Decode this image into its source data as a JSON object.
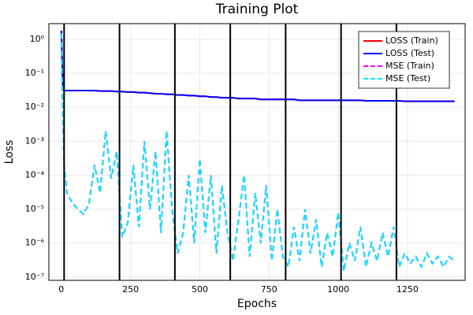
{
  "chart_data": {
    "type": "line",
    "title": "Training Plot",
    "x_label": "Epochs",
    "y_label": "Loss",
    "log_y": true,
    "grid": true,
    "legend": "top-right",
    "xlim": [
      -45,
      1458
    ],
    "xticks": [
      0,
      250,
      500,
      750,
      1000,
      1250
    ],
    "ylim": [
      8e-08,
      2.9
    ],
    "yticks": [
      {
        "value": 1,
        "label": "10⁰"
      },
      {
        "value": 0.1,
        "label": "10⁻¹"
      },
      {
        "value": 0.01,
        "label": "10⁻²"
      },
      {
        "value": 0.001,
        "label": "10⁻³"
      },
      {
        "value": 0.0001,
        "label": "10⁻⁴"
      },
      {
        "value": 1e-05,
        "label": "10⁻⁵"
      },
      {
        "value": 1e-06,
        "label": "10⁻⁶"
      },
      {
        "value": 1e-07,
        "label": "10⁻⁷"
      }
    ],
    "vlines": [
      10,
      210,
      410,
      610,
      810,
      1010,
      1210
    ],
    "x": [
      0,
      5,
      10,
      20,
      40,
      60,
      80,
      100,
      120,
      140,
      160,
      180,
      200,
      220,
      240,
      260,
      280,
      300,
      320,
      340,
      360,
      380,
      400,
      420,
      440,
      460,
      480,
      500,
      520,
      540,
      560,
      580,
      600,
      620,
      640,
      660,
      680,
      700,
      720,
      740,
      760,
      780,
      800,
      820,
      840,
      860,
      880,
      900,
      920,
      940,
      960,
      980,
      1000,
      1020,
      1040,
      1060,
      1080,
      1100,
      1120,
      1140,
      1160,
      1180,
      1200,
      1220,
      1240,
      1260,
      1280,
      1300,
      1320,
      1340,
      1360,
      1380,
      1400,
      1420
    ],
    "series": [
      {
        "name": "LOSS (Train)",
        "color": "#ff0000",
        "dash": false,
        "values": [
          1.8,
          0.05,
          0.031,
          0.031,
          0.031,
          0.031,
          0.031,
          0.031,
          0.031,
          0.03,
          0.03,
          0.03,
          0.029,
          0.029,
          0.028,
          0.028,
          0.027,
          0.027,
          0.026,
          0.025,
          0.025,
          0.024,
          0.024,
          0.023,
          0.023,
          0.022,
          0.022,
          0.021,
          0.021,
          0.02,
          0.02,
          0.019,
          0.019,
          0.019,
          0.018,
          0.018,
          0.018,
          0.018,
          0.017,
          0.017,
          0.017,
          0.017,
          0.017,
          0.017,
          0.017,
          0.016,
          0.016,
          0.016,
          0.016,
          0.016,
          0.016,
          0.016,
          0.016,
          0.016,
          0.016,
          0.016,
          0.016,
          0.0155,
          0.0155,
          0.0155,
          0.0155,
          0.0155,
          0.0155,
          0.0155,
          0.015,
          0.015,
          0.015,
          0.015,
          0.015,
          0.015,
          0.015,
          0.015,
          0.015,
          0.015
        ]
      },
      {
        "name": "LOSS (Test)",
        "color": "#0000ff",
        "dash": false,
        "values": [
          1.8,
          0.05,
          0.031,
          0.031,
          0.031,
          0.031,
          0.031,
          0.031,
          0.031,
          0.03,
          0.03,
          0.03,
          0.029,
          0.029,
          0.028,
          0.028,
          0.027,
          0.027,
          0.026,
          0.025,
          0.025,
          0.024,
          0.024,
          0.023,
          0.023,
          0.022,
          0.022,
          0.021,
          0.021,
          0.02,
          0.02,
          0.019,
          0.019,
          0.019,
          0.018,
          0.018,
          0.018,
          0.018,
          0.017,
          0.017,
          0.017,
          0.017,
          0.017,
          0.017,
          0.017,
          0.016,
          0.016,
          0.016,
          0.016,
          0.016,
          0.016,
          0.016,
          0.016,
          0.016,
          0.016,
          0.016,
          0.016,
          0.0155,
          0.0155,
          0.0155,
          0.0155,
          0.0155,
          0.0155,
          0.0155,
          0.015,
          0.015,
          0.015,
          0.015,
          0.015,
          0.015,
          0.015,
          0.015,
          0.015,
          0.015
        ]
      },
      {
        "name": "MSE (Train)",
        "color": "#ff00ff",
        "dash": true,
        "values": [
          1.5,
          0.01,
          0.0002,
          3e-05,
          1.5e-05,
          1e-05,
          7e-06,
          1.5e-05,
          0.0002,
          3e-05,
          0.002,
          8e-05,
          0.0005,
          1.5e-06,
          4e-06,
          0.0002,
          3e-06,
          0.001,
          1e-05,
          0.0005,
          2e-06,
          0.002,
          1e-05,
          5e-07,
          2e-06,
          0.0001,
          1e-06,
          0.0003,
          2e-06,
          0.0001,
          5e-07,
          5e-05,
          2e-06,
          3e-07,
          5e-06,
          0.0001,
          4e-07,
          3e-05,
          1e-06,
          5e-05,
          3e-07,
          1e-05,
          4e-07,
          2e-07,
          3e-06,
          3e-07,
          1e-05,
          5e-07,
          5e-06,
          2e-07,
          2e-06,
          4e-07,
          8e-06,
          1.5e-07,
          1e-06,
          3e-07,
          3e-06,
          2e-07,
          1e-06,
          3e-07,
          2e-06,
          4e-07,
          3e-06,
          2e-07,
          5e-07,
          2.5e-07,
          4e-07,
          2e-07,
          5e-07,
          2.5e-07,
          4e-07,
          2e-07,
          4e-07,
          3e-07
        ]
      },
      {
        "name": "MSE (Test)",
        "color": "#00e5ff",
        "dash": true,
        "values": [
          1.5,
          0.01,
          0.0002,
          3e-05,
          1.5e-05,
          1e-05,
          7e-06,
          1.5e-05,
          0.0002,
          3e-05,
          0.002,
          8e-05,
          0.0005,
          1.5e-06,
          4e-06,
          0.0002,
          3e-06,
          0.001,
          1e-05,
          0.0005,
          2e-06,
          0.002,
          1e-05,
          5e-07,
          2e-06,
          0.0001,
          1e-06,
          0.0003,
          2e-06,
          0.0001,
          5e-07,
          5e-05,
          2e-06,
          3e-07,
          5e-06,
          0.0001,
          4e-07,
          3e-05,
          1e-06,
          5e-05,
          3e-07,
          1e-05,
          4e-07,
          2e-07,
          3e-06,
          3e-07,
          1e-05,
          5e-07,
          5e-06,
          2e-07,
          2e-06,
          4e-07,
          8e-06,
          1.5e-07,
          1e-06,
          3e-07,
          3e-06,
          2e-07,
          1e-06,
          3e-07,
          2e-06,
          4e-07,
          3e-06,
          2e-07,
          5e-07,
          2.5e-07,
          4e-07,
          2e-07,
          5e-07,
          2.5e-07,
          4e-07,
          2e-07,
          4e-07,
          3e-07
        ]
      }
    ]
  }
}
